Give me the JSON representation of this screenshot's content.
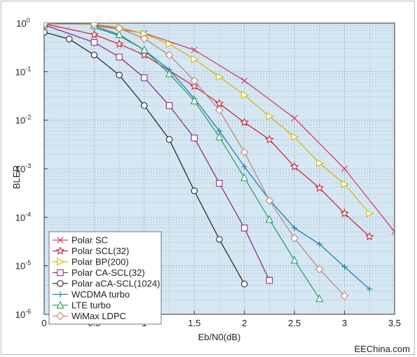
{
  "watermark": "EEChina.com",
  "chart_data": {
    "type": "line",
    "xlabel": "Eb/N0(dB)",
    "ylabel": "BLER",
    "xlim": [
      0,
      3.5
    ],
    "ylim": [
      1e-06,
      1
    ],
    "y_scale": "log",
    "grid": true,
    "legend_position": "bottom-left",
    "x_ticks": [
      "0",
      "0.5",
      "1",
      "1.5",
      "2",
      "2.5",
      "3",
      "3.5"
    ],
    "y_ticks": [
      {
        "base": "10",
        "exp": "0",
        "value": 1
      },
      {
        "base": "10",
        "exp": "-1",
        "value": 0.1
      },
      {
        "base": "10",
        "exp": "-2",
        "value": 0.01
      },
      {
        "base": "10",
        "exp": "-3",
        "value": 0.001
      },
      {
        "base": "10",
        "exp": "-4",
        "value": 0.0001
      },
      {
        "base": "10",
        "exp": "-5",
        "value": 1e-05
      },
      {
        "base": "10",
        "exp": "-6",
        "value": 1e-06
      }
    ],
    "colors": {
      "plot_bg": "#d6e7f4",
      "grid": "#9aa7b3",
      "axis": "#333333"
    },
    "series": [
      {
        "name": "Polar SC",
        "color": "#d63b6e",
        "marker": "x",
        "x": [
          0.5,
          1,
          1.5,
          2,
          2.5,
          3,
          3.5
        ],
        "y": [
          0.9,
          0.62,
          0.28,
          0.065,
          0.011,
          0.001,
          5e-05
        ]
      },
      {
        "name": "Polar SCL(32)",
        "color": "#c8283d",
        "marker": "star",
        "x": [
          0,
          0.5,
          0.75,
          1,
          1.5,
          1.75,
          2,
          2.25,
          2.5,
          2.75,
          3,
          3.25
        ],
        "y": [
          0.97,
          0.58,
          0.37,
          0.22,
          0.05,
          0.022,
          0.009,
          0.004,
          0.0011,
          0.0004,
          0.00012,
          4e-05
        ]
      },
      {
        "name": "Polar BP(200)",
        "color": "#d2b800",
        "marker": "triangle-right",
        "x": [
          0,
          0.5,
          0.75,
          1,
          1.25,
          1.5,
          1.75,
          2,
          2.25,
          2.5,
          2.75,
          3,
          3.25
        ],
        "y": [
          0.97,
          0.95,
          0.82,
          0.6,
          0.37,
          0.18,
          0.078,
          0.033,
          0.012,
          0.0045,
          0.0013,
          0.00048,
          0.00012
        ]
      },
      {
        "name": "Polar CA-SCL(32)",
        "color": "#8a2f8e",
        "marker": "square",
        "x": [
          0,
          0.5,
          0.75,
          1,
          1.25,
          1.5,
          1.75,
          2,
          2.25
        ],
        "y": [
          0.92,
          0.4,
          0.2,
          0.075,
          0.02,
          0.0043,
          0.0005,
          6e-05,
          5e-06
        ]
      },
      {
        "name": "Polar aCA-SCL(1024)",
        "color": "#2a2a2a",
        "marker": "circle",
        "x": [
          0,
          0.25,
          0.5,
          0.75,
          1,
          1.25,
          1.5,
          1.75,
          2
        ],
        "y": [
          0.65,
          0.47,
          0.22,
          0.085,
          0.02,
          0.004,
          0.00035,
          3.5e-05,
          4.2e-06
        ]
      },
      {
        "name": "WCDMA turbo",
        "color": "#1c7fa8",
        "marker": "plus",
        "x": [
          0.5,
          0.75,
          1,
          1.25,
          1.5,
          1.75,
          2,
          2.25,
          2.5,
          2.75,
          3,
          3.25
        ],
        "y": [
          0.82,
          0.55,
          0.28,
          0.11,
          0.028,
          0.006,
          0.0011,
          0.00023,
          6e-05,
          2.8e-05,
          9.5e-06,
          3.3e-06
        ]
      },
      {
        "name": "LTE turbo",
        "color": "#2aa06a",
        "marker": "triangle-up",
        "x": [
          0.5,
          0.75,
          1,
          1.25,
          1.5,
          1.75,
          2,
          2.25,
          2.5,
          2.75
        ],
        "y": [
          0.88,
          0.58,
          0.28,
          0.09,
          0.025,
          0.0045,
          0.00065,
          9e-05,
          1.3e-05,
          2.1e-06
        ]
      },
      {
        "name": "WiMax LDPC",
        "color": "#b88a80",
        "marker": "diamond",
        "x": [
          0,
          0.5,
          0.75,
          1,
          1.25,
          1.5,
          1.75,
          2,
          2.25,
          2.5,
          2.75,
          3
        ],
        "y": [
          0.97,
          0.95,
          0.78,
          0.48,
          0.22,
          0.065,
          0.016,
          0.0022,
          0.00022,
          3.7e-05,
          8.5e-06,
          2.4e-06
        ]
      }
    ]
  }
}
